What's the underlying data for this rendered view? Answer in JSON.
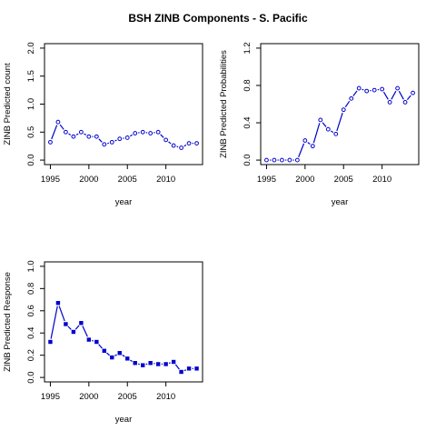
{
  "title": "BSH ZINB Components - S. Pacific",
  "chart_data": [
    {
      "type": "line",
      "title": "",
      "xlabel": "year",
      "ylabel": "ZINB Predicted count",
      "xlim": [
        1995,
        2014
      ],
      "ylim": [
        0,
        2
      ],
      "xticks": [
        1995,
        2000,
        2005,
        2010
      ],
      "yticks": [
        0,
        0.5,
        1,
        1.5,
        2
      ],
      "yticklabels": [
        "0.0",
        "0.5",
        "1.0",
        "1.5",
        "2.0"
      ],
      "marker": "open-circle",
      "series": [
        {
          "x": [
            1995,
            1996,
            1997,
            1998,
            1999,
            2000,
            2001,
            2002,
            2003,
            2004,
            2005,
            2006,
            2007,
            2008,
            2009,
            2010,
            2011,
            2012,
            2013,
            2014
          ],
          "y": [
            0.32,
            0.68,
            0.5,
            0.42,
            0.5,
            0.42,
            0.42,
            0.28,
            0.32,
            0.38,
            0.4,
            0.48,
            0.5,
            0.48,
            0.5,
            0.36,
            0.26,
            0.22,
            0.3,
            0.3
          ],
          "color": "#0000cc"
        }
      ]
    },
    {
      "type": "line",
      "title": "",
      "xlabel": "year",
      "ylabel": "ZINB Predicted Probabilities",
      "xlim": [
        1995,
        2014
      ],
      "ylim": [
        0,
        1.2
      ],
      "xticks": [
        1995,
        2000,
        2005,
        2010
      ],
      "yticks": [
        0,
        0.4,
        0.8,
        1.2
      ],
      "yticklabels": [
        "0.0",
        "0.4",
        "0.8",
        "1.2"
      ],
      "marker": "open-circle",
      "series": [
        {
          "x": [
            1995,
            1996,
            1997,
            1998,
            1999,
            2000,
            2001,
            2002,
            2003,
            2004,
            2005,
            2006,
            2007,
            2008,
            2009,
            2010,
            2011,
            2012,
            2013,
            2014
          ],
          "y": [
            0,
            0,
            0,
            0,
            0,
            0.21,
            0.15,
            0.43,
            0.33,
            0.28,
            0.54,
            0.66,
            0.77,
            0.74,
            0.75,
            0.76,
            0.62,
            0.77,
            0.62,
            0.72
          ],
          "color": "#0000cc"
        }
      ]
    },
    {
      "type": "line",
      "title": "",
      "xlabel": "year",
      "ylabel": "ZINB Predicted Response",
      "xlim": [
        1995,
        2014
      ],
      "ylim": [
        0,
        1
      ],
      "xticks": [
        1995,
        2000,
        2005,
        2010
      ],
      "yticks": [
        0,
        0.2,
        0.4,
        0.6,
        0.8,
        1
      ],
      "yticklabels": [
        "0.0",
        "0.2",
        "0.4",
        "0.6",
        "0.8",
        "1.0"
      ],
      "marker": "filled-square",
      "series": [
        {
          "x": [
            1995,
            1996,
            1997,
            1998,
            1999,
            2000,
            2001,
            2002,
            2003,
            2004,
            2005,
            2006,
            2007,
            2008,
            2009,
            2010,
            2011,
            2012,
            2013,
            2014
          ],
          "y": [
            0.32,
            0.67,
            0.48,
            0.41,
            0.49,
            0.34,
            0.32,
            0.24,
            0.18,
            0.22,
            0.17,
            0.13,
            0.11,
            0.13,
            0.12,
            0.12,
            0.14,
            0.05,
            0.08,
            0.08
          ],
          "color": "#0000cc"
        }
      ]
    }
  ]
}
